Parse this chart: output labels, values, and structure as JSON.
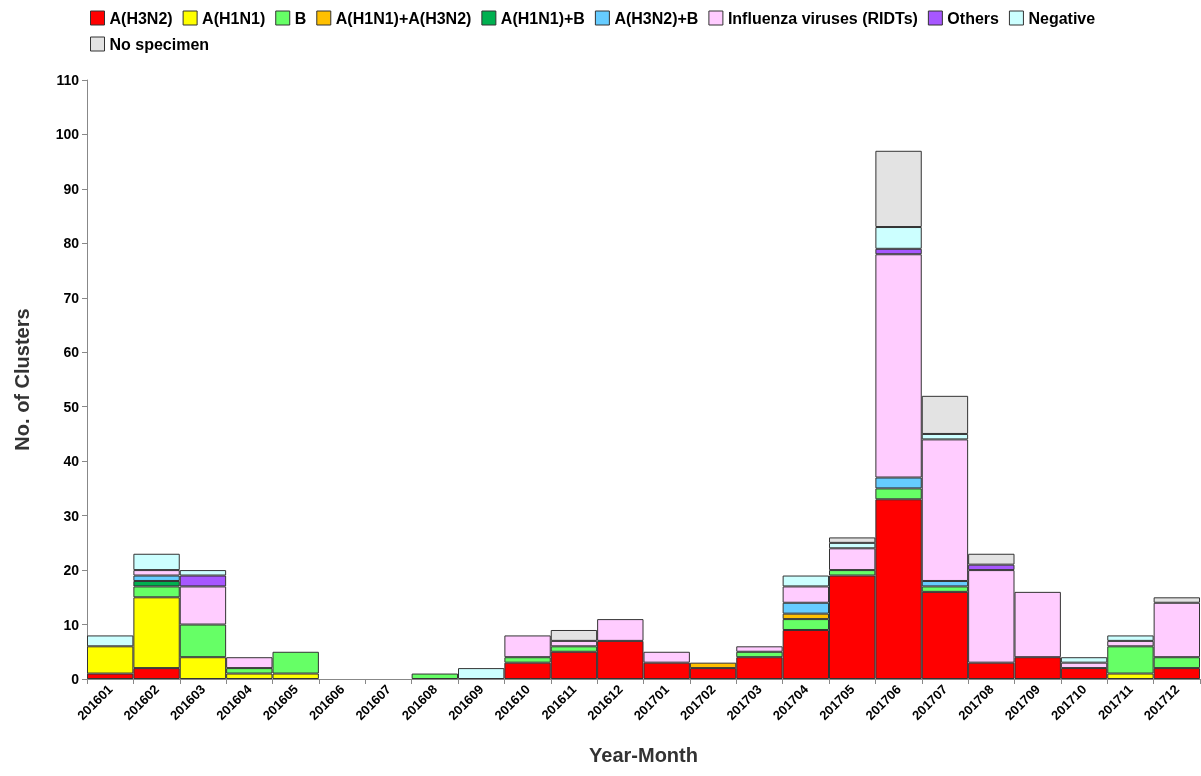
{
  "chart_data": {
    "type": "bar",
    "stacked": true,
    "xlabel": "Year-Month",
    "ylabel": "No. of Clusters",
    "categories": [
      "201601",
      "201602",
      "201603",
      "201604",
      "201605",
      "201606",
      "201607",
      "201608",
      "201609",
      "201610",
      "201611",
      "201612",
      "201701",
      "201702",
      "201703",
      "201704",
      "201705",
      "201706",
      "201707",
      "201708",
      "201709",
      "201710",
      "201711",
      "201712"
    ],
    "series": [
      {
        "name": "A(H3N2)",
        "color": "#ff0000",
        "values": [
          1,
          2,
          null,
          null,
          null,
          null,
          null,
          null,
          null,
          3,
          5,
          7,
          3,
          2,
          4,
          9,
          19,
          33,
          16,
          3,
          4,
          2,
          null,
          2
        ]
      },
      {
        "name": "A(H1N1)",
        "color": "#ffff00",
        "values": [
          5,
          13,
          4,
          1,
          1,
          null,
          null,
          null,
          null,
          null,
          null,
          null,
          null,
          null,
          null,
          null,
          null,
          null,
          null,
          null,
          null,
          null,
          1,
          null
        ]
      },
      {
        "name": "B",
        "color": "#66ff66",
        "values": [
          null,
          2,
          6,
          1,
          4,
          null,
          null,
          1,
          null,
          1,
          1,
          null,
          null,
          null,
          1,
          2,
          1,
          2,
          1,
          null,
          null,
          null,
          5,
          2
        ]
      },
      {
        "name": "A(H1N1)+A(H3N2)",
        "color": "#ffc000",
        "values": [
          null,
          null,
          null,
          null,
          null,
          null,
          null,
          null,
          null,
          null,
          null,
          null,
          null,
          1,
          null,
          1,
          null,
          null,
          null,
          null,
          null,
          null,
          null,
          null
        ]
      },
      {
        "name": "A(H1N1)+B",
        "color": "#00b050",
        "values": [
          null,
          1,
          null,
          null,
          null,
          null,
          null,
          null,
          null,
          null,
          null,
          null,
          null,
          null,
          null,
          null,
          null,
          null,
          null,
          null,
          null,
          null,
          null,
          null
        ]
      },
      {
        "name": "A(H3N2)+B",
        "color": "#66ccff",
        "values": [
          null,
          1,
          null,
          null,
          null,
          null,
          null,
          null,
          null,
          null,
          null,
          null,
          null,
          null,
          null,
          2,
          null,
          2,
          1,
          null,
          null,
          null,
          null,
          null
        ]
      },
      {
        "name": "Influenza viruses (RIDTs)",
        "color": "#ffccff",
        "values": [
          null,
          1,
          7,
          2,
          null,
          null,
          null,
          null,
          null,
          4,
          1,
          4,
          2,
          null,
          1,
          3,
          4,
          41,
          26,
          17,
          12,
          1,
          1,
          10
        ]
      },
      {
        "name": "Others",
        "color": "#a757ff",
        "values": [
          null,
          null,
          2,
          null,
          null,
          null,
          null,
          null,
          null,
          null,
          null,
          null,
          null,
          null,
          null,
          null,
          null,
          1,
          null,
          1,
          null,
          null,
          null,
          null
        ]
      },
      {
        "name": "Negative",
        "color": "#ccffff",
        "values": [
          2,
          3,
          1,
          null,
          null,
          null,
          null,
          null,
          2,
          null,
          null,
          null,
          null,
          null,
          null,
          2,
          1,
          4,
          1,
          null,
          null,
          1,
          1,
          null
        ]
      },
      {
        "name": "No specimen",
        "color": "#e3e3e3",
        "values": [
          null,
          null,
          null,
          null,
          null,
          null,
          null,
          null,
          null,
          null,
          2,
          null,
          null,
          null,
          null,
          null,
          1,
          14,
          7,
          2,
          null,
          null,
          null,
          1
        ]
      }
    ],
    "ylim": [
      0,
      110
    ],
    "yticks": [
      0,
      10,
      20,
      30,
      40,
      50,
      60,
      70,
      80,
      90,
      100,
      110
    ],
    "grid": false,
    "legend": "top"
  }
}
